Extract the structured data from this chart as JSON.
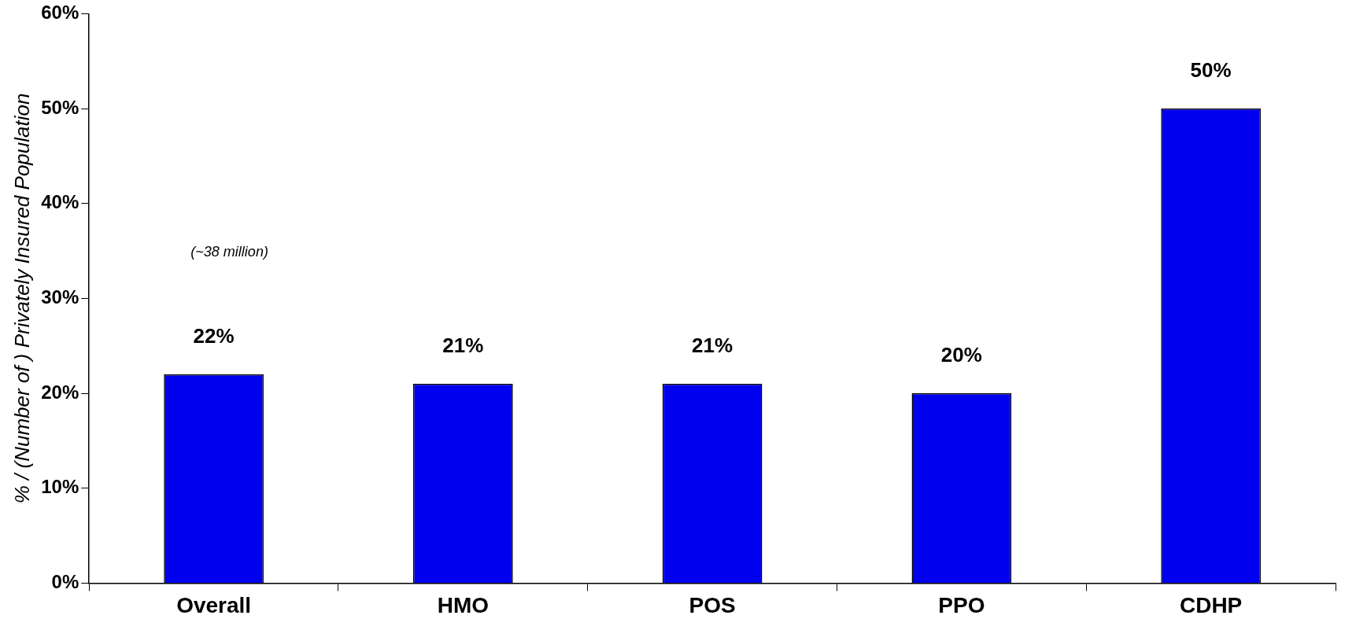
{
  "chart_data": {
    "type": "bar",
    "ylabel": "% / (Number of ) Privately Insured Population",
    "categories": [
      "Overall",
      "HMO",
      "POS",
      "PPO",
      "CDHP"
    ],
    "values": [
      22,
      21,
      21,
      20,
      50
    ],
    "value_labels": [
      "22%",
      "21%",
      "21%",
      "20%",
      "50%"
    ],
    "color": "#0000ee",
    "ylim": [
      0,
      60
    ],
    "yticks": [
      {
        "value": 0,
        "label": "0%"
      },
      {
        "value": 10,
        "label": "10%"
      },
      {
        "value": 20,
        "label": "20%"
      },
      {
        "value": 30,
        "label": "30%"
      },
      {
        "value": 40,
        "label": "40%"
      },
      {
        "value": 50,
        "label": "50%"
      },
      {
        "value": 60,
        "label": "60%"
      }
    ],
    "annotations": [
      "(~38 million)"
    ],
    "grid": false,
    "legend": false
  }
}
